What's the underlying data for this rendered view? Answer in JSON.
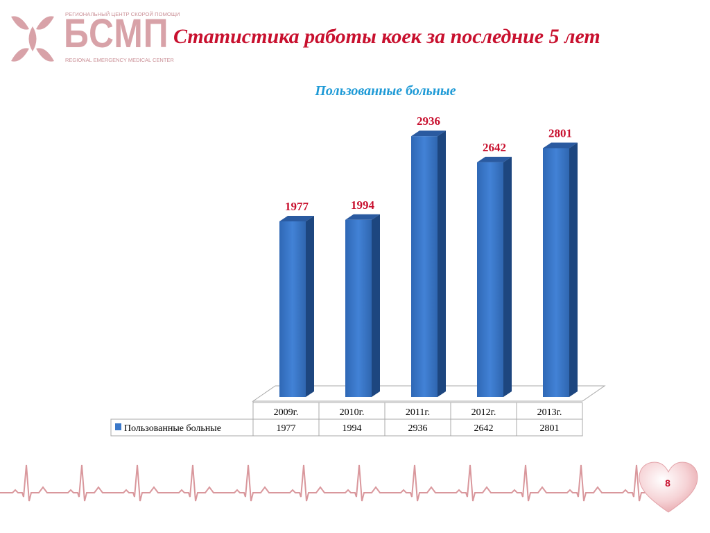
{
  "logo": {
    "tagline_top": "РЕГИОНАЛЬНЫЙ ЦЕНТР СКОРОЙ ПОМОЩИ",
    "name": "БСМП",
    "tagline_bottom": "REGIONAL EMERGENCY MEDICAL CENTER",
    "color": "#d8a2a8"
  },
  "page_title": "Статистика работы коек за последние 5 лет",
  "slide_number": "8",
  "chart_data": {
    "type": "bar",
    "title": "Пользованные больные",
    "categories": [
      "2009г.",
      "2010г.",
      "2011г.",
      "2012г.",
      "2013г."
    ],
    "series": [
      {
        "name": "Пользованные больные",
        "values": [
          1977,
          1994,
          2936,
          2642,
          2801
        ],
        "color": "#3a78c9"
      }
    ],
    "data_labels": [
      "1977",
      "1994",
      "2936",
      "2642",
      "2801"
    ],
    "ylim": [
      0,
      3000
    ],
    "grid": false,
    "legend": "data-table",
    "data_table": {
      "header": [
        "2009г.",
        "2010г.",
        "2011г.",
        "2012г.",
        "2013г."
      ],
      "row_label": "Пользованные больные",
      "row_values": [
        "1977",
        "1994",
        "2936",
        "2642",
        "2801"
      ]
    },
    "label_color": "#c8102e"
  }
}
